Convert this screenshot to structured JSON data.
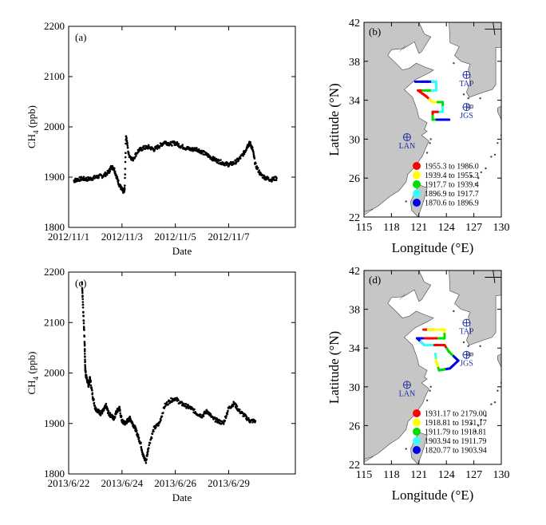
{
  "chart_data": [
    {
      "type": "scatter",
      "panel_label": "(a)",
      "xlabel": "Date",
      "ylabel_main": "CH",
      "ylabel_sub": "4",
      "ylabel_unit": " (ppb)",
      "ylim": [
        1800,
        2200
      ],
      "yticks": [
        1800,
        1900,
        2000,
        2100,
        2200
      ],
      "xlim": [
        0,
        8.5
      ],
      "xticks": [
        {
          "v": 0,
          "label": "2012/11/1"
        },
        {
          "v": 2,
          "label": "2012/11/3"
        },
        {
          "v": 4,
          "label": "2012/11/5"
        },
        {
          "v": 6,
          "label": "2012/11/7"
        }
      ],
      "x": [
        0.2,
        0.3,
        0.5,
        0.7,
        0.9,
        1.1,
        1.3,
        1.5,
        1.6,
        1.7,
        1.8,
        1.9,
        2.0,
        2.05,
        2.1,
        2.15,
        2.25,
        2.4,
        2.6,
        2.8,
        3.0,
        3.2,
        3.4,
        3.6,
        3.8,
        4.0,
        4.2,
        4.4,
        4.6,
        4.8,
        5.0,
        5.2,
        5.4,
        5.6,
        5.8,
        6.0,
        6.2,
        6.4,
        6.6,
        6.7,
        6.8,
        6.9,
        7.0,
        7.2,
        7.4,
        7.6,
        7.8
      ],
      "y": [
        1893,
        1895,
        1897,
        1896,
        1898,
        1901,
        1903,
        1910,
        1920,
        1918,
        1900,
        1885,
        1875,
        1872,
        1875,
        1985,
        1945,
        1935,
        1952,
        1958,
        1960,
        1955,
        1962,
        1970,
        1966,
        1968,
        1962,
        1958,
        1955,
        1956,
        1950,
        1944,
        1937,
        1932,
        1928,
        1925,
        1928,
        1936,
        1950,
        1962,
        1968,
        1955,
        1925,
        1905,
        1898,
        1895,
        1898
      ]
    },
    {
      "type": "scatter",
      "panel_label": "(c)",
      "xlabel": "Date",
      "ylabel_main": "CH",
      "ylabel_sub": "4",
      "ylabel_unit": " (ppb)",
      "ylim": [
        1800,
        2200
      ],
      "yticks": [
        1800,
        1900,
        2000,
        2100,
        2200
      ],
      "xlim": [
        0,
        8.5
      ],
      "xticks": [
        {
          "v": 0,
          "label": "2013/6/22"
        },
        {
          "v": 2,
          "label": "2013/6/24"
        },
        {
          "v": 4,
          "label": "2013/6/26"
        },
        {
          "v": 6,
          "label": "2013/6/29"
        }
      ],
      "x": [
        0.5,
        0.55,
        0.6,
        0.62,
        0.65,
        0.7,
        0.75,
        0.8,
        0.9,
        1.0,
        1.1,
        1.2,
        1.3,
        1.4,
        1.5,
        1.6,
        1.7,
        1.8,
        1.9,
        2.0,
        2.1,
        2.2,
        2.3,
        2.4,
        2.5,
        2.6,
        2.7,
        2.8,
        2.9,
        3.0,
        3.2,
        3.4,
        3.6,
        3.8,
        4.0,
        4.2,
        4.4,
        4.6,
        4.8,
        5.0,
        5.2,
        5.4,
        5.6,
        5.8,
        6.0,
        6.2,
        6.4,
        6.6,
        6.8,
        7.0
      ],
      "y": [
        2180,
        2120,
        2060,
        2010,
        1995,
        1985,
        1975,
        1990,
        1955,
        1930,
        1925,
        1920,
        1925,
        1935,
        1920,
        1915,
        1910,
        1925,
        1930,
        1905,
        1900,
        1905,
        1910,
        1900,
        1890,
        1875,
        1860,
        1835,
        1825,
        1855,
        1890,
        1900,
        1935,
        1945,
        1950,
        1940,
        1935,
        1930,
        1920,
        1915,
        1925,
        1910,
        1905,
        1900,
        1930,
        1940,
        1925,
        1915,
        1905,
        1905
      ]
    },
    {
      "type": "map",
      "panel_label": "(b)",
      "xlabel": "Longitude (°E)",
      "ylabel": "Latitude (°N)",
      "xlim": [
        115,
        130
      ],
      "ylim": [
        22,
        42
      ],
      "xticks": [
        115,
        118,
        121,
        124,
        127,
        130
      ],
      "yticks": [
        22,
        26,
        30,
        34,
        38,
        42
      ],
      "stations": [
        {
          "name": "TAP",
          "lon": 126.2,
          "lat": 36.6
        },
        {
          "name": "JGS",
          "lon": 126.2,
          "lat": 33.3
        },
        {
          "name": "LAN",
          "lon": 119.7,
          "lat": 30.2
        }
      ],
      "legend": [
        {
          "color": "#ff0000",
          "text": "1955.3  to  1986.0"
        },
        {
          "color": "#ffff00",
          "text": "1939.4  to  1955.3"
        },
        {
          "color": "#00dd00",
          "text": "1917.7  to  1939.4"
        },
        {
          "color": "#33ffff",
          "text": "1896.9  to  1917.7"
        },
        {
          "color": "#0000ee",
          "text": "1870.6  to  1896.9"
        }
      ],
      "track": [
        {
          "lon": 120.6,
          "lat": 35.9,
          "c": 4
        },
        {
          "lon": 122.0,
          "lat": 35.9,
          "c": 4
        },
        {
          "lon": 122.9,
          "lat": 35.9,
          "c": 3
        },
        {
          "lon": 122.9,
          "lat": 35.0,
          "c": 3
        },
        {
          "lon": 121.5,
          "lat": 35.0,
          "c": 2
        },
        {
          "lon": 120.9,
          "lat": 35.0,
          "c": 0
        },
        {
          "lon": 121.8,
          "lat": 34.4,
          "c": 0
        },
        {
          "lon": 122.5,
          "lat": 33.8,
          "c": 1
        },
        {
          "lon": 123.6,
          "lat": 33.8,
          "c": 2
        },
        {
          "lon": 123.6,
          "lat": 32.8,
          "c": 3
        },
        {
          "lon": 122.5,
          "lat": 32.8,
          "c": 0
        },
        {
          "lon": 122.5,
          "lat": 32.0,
          "c": 2
        },
        {
          "lon": 123.4,
          "lat": 32.0,
          "c": 4
        },
        {
          "lon": 124.3,
          "lat": 32.0,
          "c": 4
        }
      ]
    },
    {
      "type": "map",
      "panel_label": "(d)",
      "xlabel": "Longitude (°E)",
      "ylabel": "Latitude (°N)",
      "xlim": [
        115,
        130
      ],
      "ylim": [
        22,
        42
      ],
      "xticks": [
        115,
        118,
        121,
        124,
        127,
        130
      ],
      "yticks": [
        22,
        26,
        30,
        34,
        38,
        42
      ],
      "stations": [
        {
          "name": "TAP",
          "lon": 126.2,
          "lat": 36.6
        },
        {
          "name": "JGS",
          "lon": 126.2,
          "lat": 33.3
        },
        {
          "name": "LAN",
          "lon": 119.7,
          "lat": 30.2
        }
      ],
      "legend": [
        {
          "color": "#ff0000",
          "text": "1931.17  to  2179.00"
        },
        {
          "color": "#ffff00",
          "text": "1918.81  to  1931.17"
        },
        {
          "color": "#00dd00",
          "text": "1911.79  to  1918.81"
        },
        {
          "color": "#33ffff",
          "text": "1903.94  to  1911.79"
        },
        {
          "color": "#0000ee",
          "text": "1820.77  to  1903.94"
        }
      ],
      "track": [
        {
          "lon": 121.5,
          "lat": 35.9,
          "c": 0
        },
        {
          "lon": 122.5,
          "lat": 35.9,
          "c": 1
        },
        {
          "lon": 123.8,
          "lat": 35.9,
          "c": 1
        },
        {
          "lon": 123.8,
          "lat": 35.0,
          "c": 2
        },
        {
          "lon": 122.0,
          "lat": 35.0,
          "c": 0
        },
        {
          "lon": 120.8,
          "lat": 35.0,
          "c": 4
        },
        {
          "lon": 121.6,
          "lat": 34.3,
          "c": 3
        },
        {
          "lon": 123.8,
          "lat": 34.3,
          "c": 0
        },
        {
          "lon": 124.3,
          "lat": 33.6,
          "c": 2
        },
        {
          "lon": 125.3,
          "lat": 32.7,
          "c": 4
        },
        {
          "lon": 124.4,
          "lat": 31.9,
          "c": 4
        },
        {
          "lon": 123.2,
          "lat": 31.7,
          "c": 2
        },
        {
          "lon": 122.9,
          "lat": 32.6,
          "c": 1
        },
        {
          "lon": 122.8,
          "lat": 33.4,
          "c": 3
        }
      ]
    }
  ]
}
